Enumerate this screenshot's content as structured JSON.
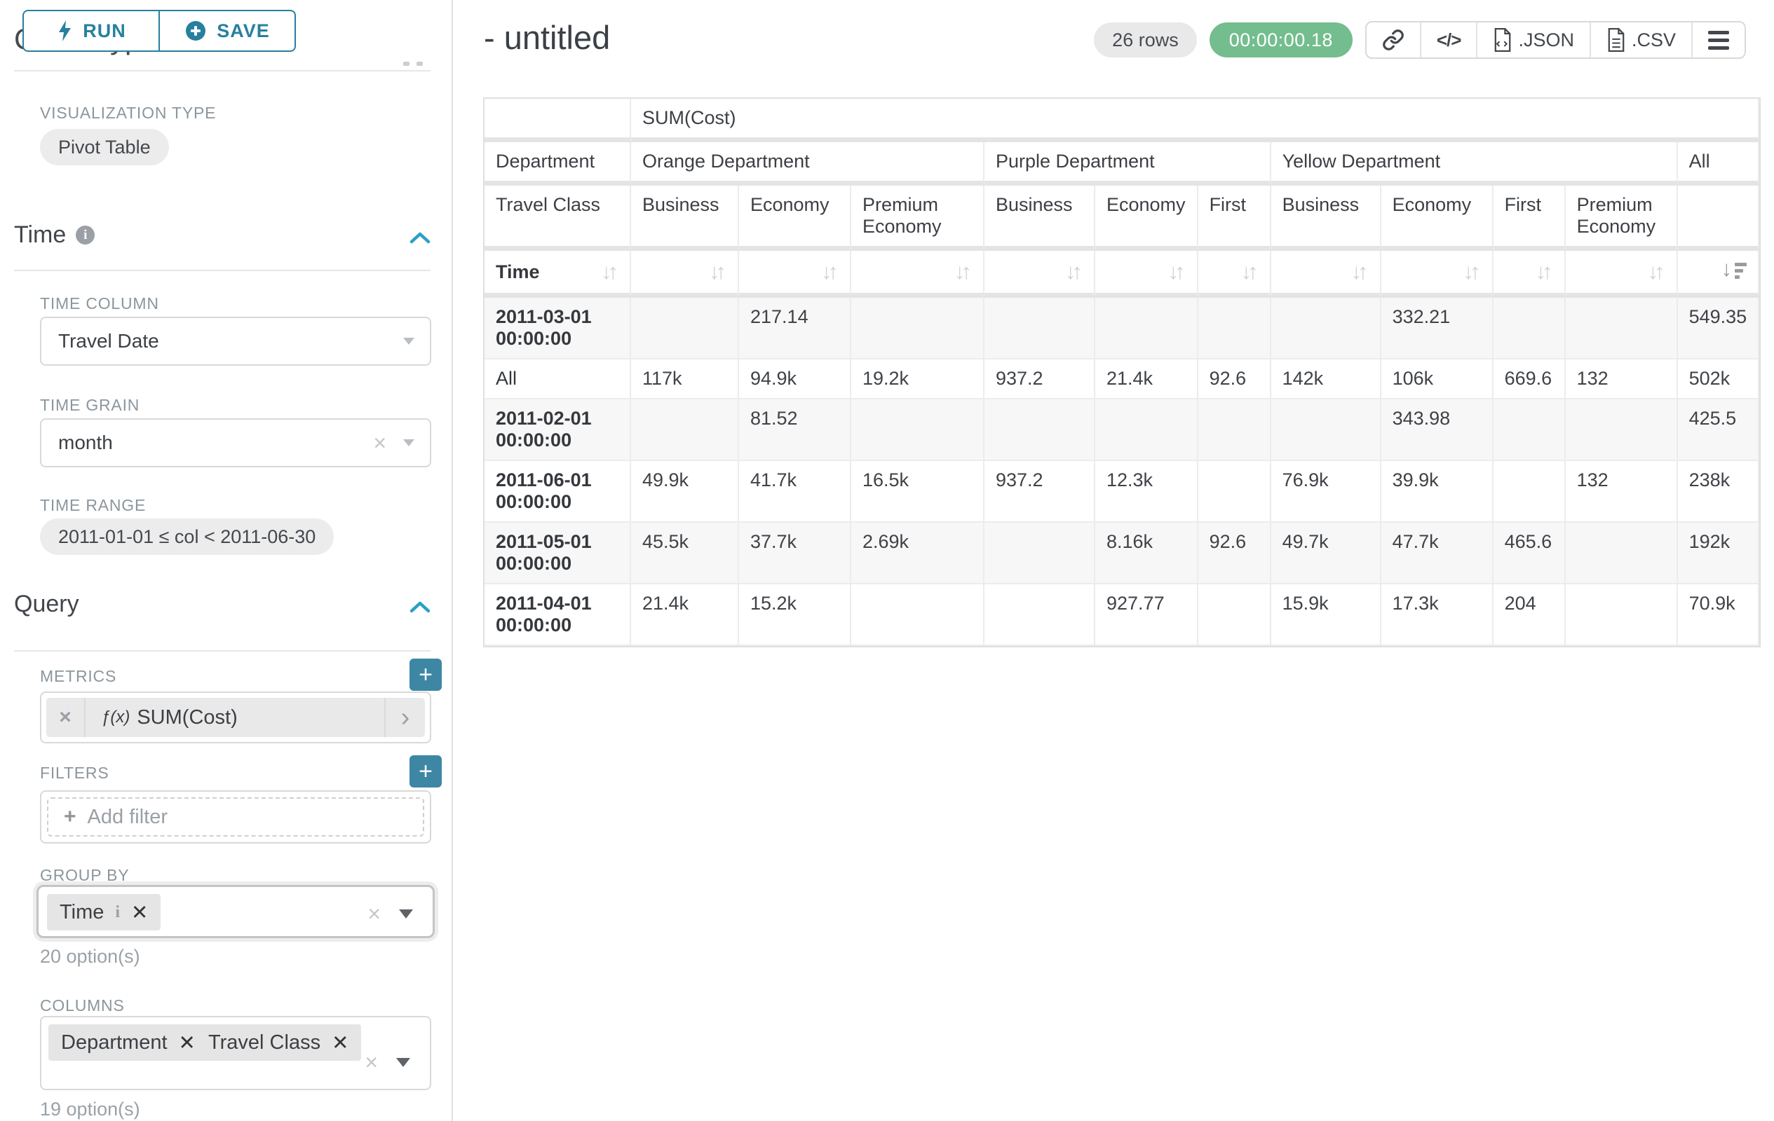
{
  "icons": {
    "add": "+",
    "close": "×",
    "close_heavy": "✕",
    "chevron_right": "›",
    "sort_inactive": "↓↑",
    "sort_desc_arrow": "↓",
    "fx": "ƒ(x)",
    "code": "</>",
    "info": "i"
  },
  "sidebar": {
    "run_label": "RUN",
    "save_label": "SAVE",
    "chart_type_title": "Chart Type",
    "viz_type_label": "VISUALIZATION TYPE",
    "viz_type_value": "Pivot Table",
    "time": {
      "title": "Time",
      "time_column_label": "TIME COLUMN",
      "time_column_value": "Travel Date",
      "time_grain_label": "TIME GRAIN",
      "time_grain_value": "month",
      "time_range_label": "TIME RANGE",
      "time_range_value": "2011-01-01 ≤ col < 2011-06-30"
    },
    "query": {
      "title": "Query",
      "metrics_label": "METRICS",
      "metric_value": "SUM(Cost)",
      "filters_label": "FILTERS",
      "add_filter_label": "Add filter",
      "group_by_label": "GROUP BY",
      "group_by_chips": [
        "Time"
      ],
      "group_by_options": "20 option(s)",
      "columns_label": "COLUMNS",
      "columns_chips": [
        "Department",
        "Travel Class"
      ],
      "columns_options": "19 option(s)"
    }
  },
  "header": {
    "title": "- untitled",
    "row_count": "26 rows",
    "query_time": "00:00:00.18",
    "export_json_label": ".JSON",
    "export_csv_label": ".CSV"
  },
  "pivot_table": {
    "metric_header": "SUM(Cost)",
    "row_dim_label": "Department",
    "col_dim_label": "Travel Class",
    "sort_row_label": "Time",
    "col_groups": [
      {
        "label": "Orange Department",
        "span": 3
      },
      {
        "label": "Purple Department",
        "span": 3
      },
      {
        "label": "Yellow Department",
        "span": 4
      },
      {
        "label": "All",
        "span": 1
      }
    ],
    "col_headers": [
      "Business",
      "Economy",
      "Premium Economy",
      "Business",
      "Economy",
      "First",
      "Business",
      "Economy",
      "First",
      "Premium Economy",
      ""
    ],
    "rows": [
      {
        "label": "2011-03-01 00:00:00",
        "bold": true,
        "values": [
          "",
          "217.14",
          "",
          "",
          "",
          "",
          "",
          "332.21",
          "",
          "",
          "549.35"
        ]
      },
      {
        "label": "All",
        "bold": false,
        "values": [
          "117k",
          "94.9k",
          "19.2k",
          "937.2",
          "21.4k",
          "92.6",
          "142k",
          "106k",
          "669.6",
          "132",
          "502k"
        ]
      },
      {
        "label": "2011-02-01 00:00:00",
        "bold": true,
        "values": [
          "",
          "81.52",
          "",
          "",
          "",
          "",
          "",
          "343.98",
          "",
          "",
          "425.5"
        ]
      },
      {
        "label": "2011-06-01 00:00:00",
        "bold": true,
        "values": [
          "49.9k",
          "41.7k",
          "16.5k",
          "937.2",
          "12.3k",
          "",
          "76.9k",
          "39.9k",
          "",
          "132",
          "238k"
        ]
      },
      {
        "label": "2011-05-01 00:00:00",
        "bold": true,
        "values": [
          "45.5k",
          "37.7k",
          "2.69k",
          "",
          "8.16k",
          "92.6",
          "49.7k",
          "47.7k",
          "465.6",
          "",
          "192k"
        ]
      },
      {
        "label": "2011-04-01 00:00:00",
        "bold": true,
        "values": [
          "21.4k",
          "15.2k",
          "",
          "",
          "927.77",
          "",
          "15.9k",
          "17.3k",
          "204",
          "",
          "70.9k"
        ]
      }
    ]
  }
}
